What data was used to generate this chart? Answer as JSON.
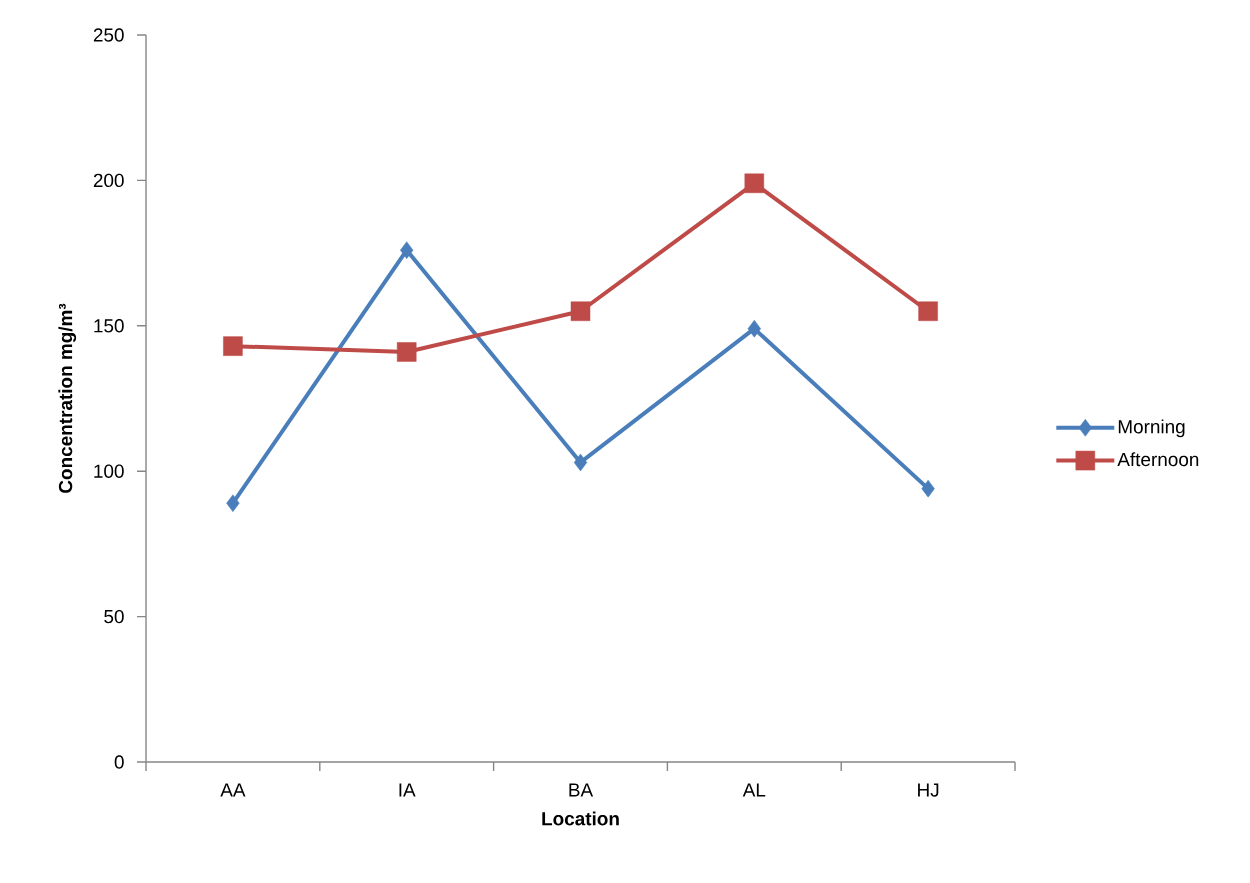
{
  "chart_data": {
    "type": "line",
    "xlabel": "Location",
    "ylabel": "Concentration mg/m³",
    "categories": [
      "AA",
      "IA",
      "BA",
      "AL",
      "HJ"
    ],
    "series": [
      {
        "name": "Morning",
        "color": "#4a7ebb",
        "marker": "diamond",
        "values": [
          89,
          176,
          103,
          149,
          94
        ]
      },
      {
        "name": "Afternoon",
        "color": "#be4b48",
        "marker": "square",
        "values": [
          143,
          141,
          155,
          199,
          155
        ]
      }
    ],
    "ylim": [
      0,
      250
    ],
    "yticks": [
      0,
      50,
      100,
      150,
      200,
      250
    ],
    "legend": "right",
    "line_style": "solid"
  }
}
